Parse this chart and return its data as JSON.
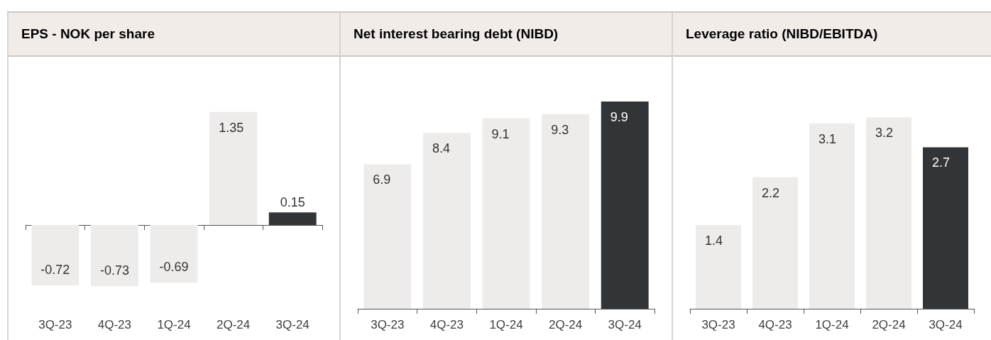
{
  "chart_data": [
    {
      "type": "bar",
      "title": "EPS - NOK per share",
      "categories": [
        "3Q-23",
        "4Q-23",
        "1Q-24",
        "2Q-24",
        "3Q-24"
      ],
      "values": [
        -0.72,
        -0.73,
        -0.69,
        1.35,
        0.15
      ],
      "colors": [
        "#eeebeb",
        "#eeebeb",
        "#eeebeb",
        "#eeebeb",
        "#323537"
      ],
      "data_labels": true
    },
    {
      "type": "bar",
      "title": "Net interest bearing debt (NIBD)",
      "categories": [
        "3Q-23",
        "4Q-23",
        "1Q-24",
        "2Q-24",
        "3Q-24"
      ],
      "values": [
        6.9,
        8.4,
        9.1,
        9.3,
        9.9
      ],
      "colors": [
        "#eeebeb",
        "#eeebeb",
        "#eeebeb",
        "#eeebeb",
        "#323537"
      ],
      "data_labels": true
    },
    {
      "type": "bar",
      "title": "Leverage ratio (NIBD/EBITDA)",
      "categories": [
        "3Q-23",
        "4Q-23",
        "1Q-24",
        "2Q-24",
        "3Q-24"
      ],
      "values": [
        1.4,
        2.2,
        3.1,
        3.2,
        2.7
      ],
      "colors": [
        "#eeebeb",
        "#eeebeb",
        "#eeebeb",
        "#eeebeb",
        "#323537"
      ],
      "data_labels": true
    }
  ]
}
